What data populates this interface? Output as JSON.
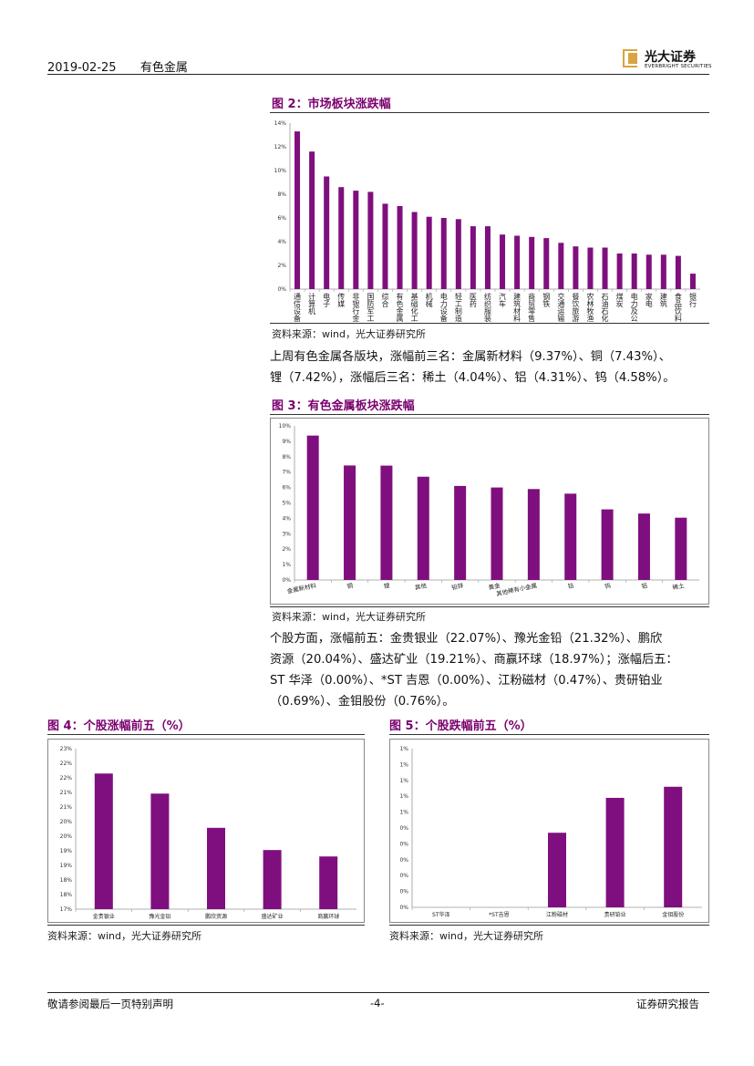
{
  "header": {
    "date": "2019-02-25",
    "sector": "有色金属",
    "logo_cn": "光大证券",
    "logo_en": "EVERBRIGHT SECURITIES"
  },
  "figures": {
    "fig2": {
      "title": "图 2：市场板块涨跌幅",
      "source": "资料来源：wind，光大证券研究所"
    },
    "fig3": {
      "title": "图 3：有色金属板块涨跌幅",
      "source": "资料来源：wind，光大证券研究所"
    },
    "fig4": {
      "title": "图 4：个股涨幅前五（%）",
      "source": "资料来源：wind，光大证券研究所"
    },
    "fig5": {
      "title": "图 5：个股跌幅前五（%）",
      "source": "资料来源：wind，光大证券研究所"
    }
  },
  "paragraphs": {
    "p1_line1": "上周有色金属各版块，涨幅前三名：金属新材料（9.37%）、铜（7.43%）、",
    "p1_line2": "锂（7.42%），涨幅后三名：稀土（4.04%）、铝（4.31%）、钨（4.58%）。",
    "p2_line1": "个股方面，涨幅前五：金贵银业（22.07%）、豫光金铅（21.32%）、鹏欣",
    "p2_line2": "资源（20.04%）、盛达矿业（19.21%）、商赢环球（18.97%）；涨幅后五：",
    "p2_line3": "ST 华泽（0.00%）、*ST 吉恩（0.00%）、江粉磁材（0.47%）、贵研铂业",
    "p2_line4": "（0.69%）、金钼股份（0.76%）。"
  },
  "footer": {
    "disclaimer": "敬请参阅最后一页特别声明",
    "page": "-4-",
    "report_type": "证券研究报告"
  },
  "colors": {
    "bar": "#7f0f7e",
    "title": "#7a006e"
  },
  "chart_data": [
    {
      "id": "fig2",
      "type": "bar",
      "title": "市场板块涨跌幅",
      "ylim": [
        0,
        14
      ],
      "yticks": [
        "0%",
        "2%",
        "4%",
        "6%",
        "8%",
        "10%",
        "12%",
        "14%"
      ],
      "categories": [
        "通信设备",
        "计算机",
        "电子",
        "传媒",
        "非银行金融",
        "国防军工",
        "综合",
        "有色金属",
        "基础化工",
        "机械",
        "电力设备",
        "轻工制造",
        "医药",
        "纺织服装",
        "汽车",
        "建筑材料",
        "商贸零售",
        "钢铁",
        "交通运输",
        "餐饮旅游",
        "农林牧渔",
        "石油石化",
        "煤炭",
        "电力及公用事业",
        "家电",
        "建筑",
        "食品饮料",
        "银行"
      ],
      "values": [
        13.3,
        11.6,
        9.5,
        8.6,
        8.3,
        8.2,
        7.2,
        7.0,
        6.5,
        6.1,
        6.0,
        5.9,
        5.3,
        5.3,
        4.6,
        4.5,
        4.4,
        4.3,
        3.9,
        3.6,
        3.5,
        3.5,
        3.0,
        3.0,
        2.9,
        2.9,
        2.8,
        1.3
      ]
    },
    {
      "id": "fig3",
      "type": "bar",
      "title": "有色金属板块涨跌幅",
      "ylim": [
        0,
        10
      ],
      "yticks": [
        "0%",
        "1%",
        "2%",
        "3%",
        "4%",
        "5%",
        "6%",
        "7%",
        "8%",
        "9%",
        "10%"
      ],
      "categories": [
        "金属新材料",
        "铜",
        "锂",
        "其他",
        "铅锌",
        "黄金",
        "其他稀有小金属",
        "钴",
        "钨",
        "铝",
        "稀土"
      ],
      "values": [
        9.37,
        7.43,
        7.42,
        6.7,
        6.1,
        6.0,
        5.9,
        5.6,
        4.58,
        4.31,
        4.04
      ]
    },
    {
      "id": "fig4",
      "type": "bar",
      "title": "个股涨幅前五（%）",
      "ylim": [
        17,
        23
      ],
      "yticks": [
        "17%",
        "18%",
        "18%",
        "19%",
        "19%",
        "20%",
        "20%",
        "21%",
        "21%",
        "22%",
        "22%",
        "23%"
      ],
      "categories": [
        "金贵银业",
        "豫光金铅",
        "鹏欣资源",
        "盛达矿业",
        "商赢环球"
      ],
      "values": [
        22.07,
        21.32,
        20.04,
        19.21,
        18.97
      ]
    },
    {
      "id": "fig5",
      "type": "bar",
      "title": "个股跌幅前五（%）",
      "ylim": [
        0,
        1
      ],
      "yticks": [
        "0%",
        "0%",
        "0%",
        "0%",
        "0%",
        "0%",
        "1%",
        "1%",
        "1%",
        "1%",
        "1%"
      ],
      "categories": [
        "ST华泽",
        "*ST吉恩",
        "江粉磁材",
        "贵研铂业",
        "金钼股份"
      ],
      "values": [
        0.0,
        0.0,
        0.47,
        0.69,
        0.76
      ]
    }
  ]
}
